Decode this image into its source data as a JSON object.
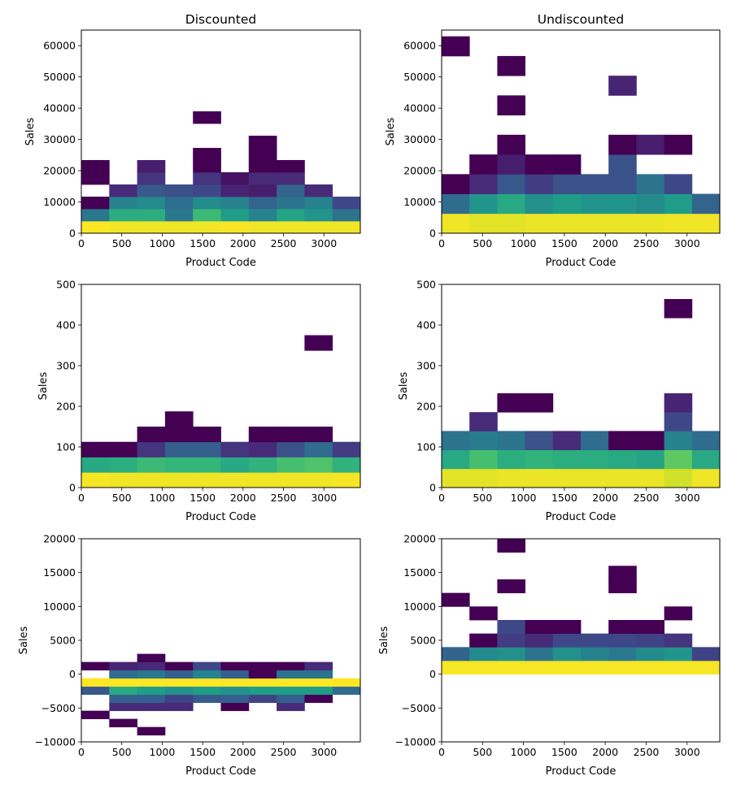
{
  "colormap": {
    "name": "viridis",
    "stops": [
      "#440154",
      "#482878",
      "#3e4989",
      "#31688e",
      "#26828e",
      "#1f9e89",
      "#35b779",
      "#6ece58",
      "#b5de2b",
      "#fde725"
    ]
  },
  "chart_data": [
    {
      "type": "heatmap",
      "title": "Discounted",
      "xlabel": "Product Code",
      "ylabel": "Sales",
      "xlim": [
        0,
        3450
      ],
      "ylim": [
        0,
        65000
      ],
      "xticks": [
        0,
        500,
        1000,
        1500,
        2000,
        2500,
        3000
      ],
      "yticks": [
        0,
        10000,
        20000,
        30000,
        40000,
        50000,
        60000
      ],
      "x_edges": [
        0,
        345,
        690,
        1035,
        1380,
        1725,
        2070,
        2415,
        2760,
        3105,
        3450
      ],
      "y_edges": [
        0,
        3900,
        7800,
        11700,
        15600,
        19500,
        23400,
        27300,
        31200,
        35100,
        39000
      ],
      "counts": [
        [
          1.0,
          0.98,
          0.98,
          0.98,
          0.98,
          0.99,
          0.98,
          0.98,
          0.98,
          0.98
        ],
        [
          0.4,
          0.62,
          0.62,
          0.4,
          0.68,
          0.55,
          0.45,
          0.58,
          0.52,
          0.38
        ],
        [
          0.0,
          0.45,
          0.48,
          0.36,
          0.48,
          0.45,
          0.32,
          0.38,
          0.45,
          0.22
        ],
        [
          null,
          0.12,
          0.28,
          0.25,
          0.22,
          0.1,
          0.08,
          0.32,
          0.12,
          null
        ],
        [
          0.0,
          null,
          0.15,
          null,
          0.15,
          0.05,
          0.12,
          0.12,
          null,
          null
        ],
        [
          0.0,
          null,
          0.08,
          null,
          0.0,
          null,
          0.0,
          0.0,
          null,
          null
        ],
        [
          null,
          null,
          null,
          null,
          0.0,
          null,
          0.0,
          null,
          null,
          null
        ],
        [
          null,
          null,
          null,
          null,
          null,
          null,
          0.0,
          null,
          null,
          null
        ],
        [
          null,
          null,
          null,
          null,
          null,
          null,
          null,
          null,
          null,
          null
        ],
        [
          null,
          null,
          null,
          null,
          0.0,
          null,
          null,
          null,
          null,
          null
        ]
      ]
    },
    {
      "type": "heatmap",
      "title": "Undiscounted",
      "xlabel": "Product Code",
      "ylabel": "Sales",
      "xlim": [
        0,
        3400
      ],
      "ylim": [
        0,
        65000
      ],
      "xticks": [
        0,
        500,
        1000,
        1500,
        2000,
        2500,
        3000
      ],
      "yticks": [
        0,
        10000,
        20000,
        30000,
        40000,
        50000,
        60000
      ],
      "x_edges": [
        0,
        340,
        680,
        1020,
        1360,
        1700,
        2040,
        2380,
        2720,
        3060,
        3400
      ],
      "y_edges": [
        0,
        6300,
        12600,
        18900,
        25200,
        31500,
        37800,
        44100,
        50400,
        56700,
        63000
      ],
      "counts": [
        [
          0.98,
          0.96,
          0.96,
          0.97,
          0.97,
          0.97,
          0.97,
          0.97,
          0.98,
          0.98
        ],
        [
          0.35,
          0.52,
          0.6,
          0.5,
          0.55,
          0.52,
          0.52,
          0.48,
          0.55,
          0.32
        ],
        [
          0.0,
          0.12,
          0.28,
          0.18,
          0.25,
          0.25,
          0.25,
          0.38,
          0.22,
          null
        ],
        [
          null,
          0.0,
          0.08,
          0.0,
          0.0,
          null,
          0.25,
          null,
          null,
          null
        ],
        [
          null,
          null,
          0.0,
          null,
          null,
          null,
          0.0,
          0.08,
          0.0,
          null
        ],
        [
          null,
          null,
          null,
          null,
          null,
          null,
          null,
          null,
          null,
          null
        ],
        [
          null,
          null,
          0.0,
          null,
          null,
          null,
          null,
          null,
          null,
          null
        ],
        [
          null,
          null,
          null,
          null,
          null,
          null,
          0.1,
          null,
          null,
          null
        ],
        [
          null,
          null,
          0.0,
          null,
          null,
          null,
          null,
          null,
          null,
          null
        ],
        [
          0.0,
          null,
          null,
          null,
          null,
          null,
          null,
          null,
          null,
          null
        ]
      ]
    },
    {
      "type": "heatmap",
      "title": "",
      "xlabel": "Product Code",
      "ylabel": "Sales",
      "xlim": [
        0,
        3450
      ],
      "ylim": [
        0,
        500
      ],
      "xticks": [
        0,
        500,
        1000,
        1500,
        2000,
        2500,
        3000
      ],
      "yticks": [
        0,
        100,
        200,
        300,
        400,
        500
      ],
      "x_edges": [
        0,
        345,
        690,
        1035,
        1380,
        1725,
        2070,
        2415,
        2760,
        3105,
        3450
      ],
      "y_edges": [
        0,
        37.5,
        75,
        112.5,
        150,
        187.5,
        225,
        262.5,
        300,
        337.5,
        375
      ],
      "counts": [
        [
          0.99,
          0.98,
          0.98,
          0.98,
          0.98,
          0.98,
          0.98,
          0.98,
          0.98,
          0.99
        ],
        [
          0.6,
          0.62,
          0.68,
          0.66,
          0.66,
          0.6,
          0.64,
          0.7,
          0.72,
          0.64
        ],
        [
          0.0,
          0.0,
          0.15,
          0.3,
          0.3,
          0.15,
          0.12,
          0.25,
          0.35,
          0.18
        ],
        [
          null,
          null,
          0.0,
          0.0,
          0.0,
          null,
          0.0,
          0.0,
          0.0,
          null
        ],
        [
          null,
          null,
          null,
          0.0,
          null,
          null,
          null,
          null,
          null,
          null
        ],
        [
          null,
          null,
          null,
          null,
          null,
          null,
          null,
          null,
          null,
          null
        ],
        [
          null,
          null,
          null,
          null,
          null,
          null,
          null,
          null,
          null,
          null
        ],
        [
          null,
          null,
          null,
          null,
          null,
          null,
          null,
          null,
          null,
          null
        ],
        [
          null,
          null,
          null,
          null,
          null,
          null,
          null,
          null,
          null,
          null
        ],
        [
          null,
          null,
          null,
          null,
          null,
          null,
          null,
          null,
          0.0,
          null
        ]
      ]
    },
    {
      "type": "heatmap",
      "title": "",
      "xlabel": "Product Code",
      "ylabel": "Sales",
      "xlim": [
        0,
        3400
      ],
      "ylim": [
        0,
        500
      ],
      "xticks": [
        0,
        500,
        1000,
        1500,
        2000,
        2500,
        3000
      ],
      "yticks": [
        0,
        100,
        200,
        300,
        400,
        500
      ],
      "x_edges": [
        0,
        340,
        680,
        1020,
        1360,
        1700,
        2040,
        2380,
        2720,
        3060,
        3400
      ],
      "y_edges": [
        0,
        46.4,
        92.8,
        139.2,
        185.6,
        232,
        278.4,
        324.8,
        371.2,
        417.6,
        464
      ],
      "counts": [
        [
          0.96,
          0.96,
          0.97,
          0.97,
          0.97,
          0.97,
          0.97,
          0.97,
          0.93,
          0.98
        ],
        [
          0.6,
          0.7,
          0.62,
          0.65,
          0.62,
          0.62,
          0.6,
          0.58,
          0.75,
          0.6
        ],
        [
          0.38,
          0.42,
          0.38,
          0.25,
          0.12,
          0.35,
          0.0,
          0.0,
          0.45,
          0.35
        ],
        [
          null,
          0.12,
          null,
          null,
          null,
          null,
          null,
          null,
          0.22,
          null
        ],
        [
          null,
          null,
          0.0,
          0.0,
          null,
          null,
          null,
          null,
          0.1,
          null
        ],
        [
          null,
          null,
          null,
          null,
          null,
          null,
          null,
          null,
          null,
          null
        ],
        [
          null,
          null,
          null,
          null,
          null,
          null,
          null,
          null,
          null,
          null
        ],
        [
          null,
          null,
          null,
          null,
          null,
          null,
          null,
          null,
          null,
          null
        ],
        [
          null,
          null,
          null,
          null,
          null,
          null,
          null,
          null,
          null,
          null
        ],
        [
          null,
          null,
          null,
          null,
          null,
          null,
          null,
          null,
          0.0,
          null
        ]
      ]
    },
    {
      "type": "heatmap",
      "title": "",
      "xlabel": "Product Code",
      "ylabel": "Sales",
      "xlim": [
        0,
        3450
      ],
      "ylim": [
        -10000,
        20000
      ],
      "xticks": [
        0,
        500,
        1000,
        1500,
        2000,
        2500,
        3000
      ],
      "yticks": [
        -10000,
        -5000,
        0,
        5000,
        10000,
        15000,
        20000
      ],
      "x_edges": [
        0,
        345,
        690,
        1035,
        1380,
        1725,
        2070,
        2415,
        2760,
        3105,
        3450
      ],
      "y_edges": [
        -9000,
        -7800,
        -6600,
        -5400,
        -4200,
        -3000,
        -1800,
        -600,
        600,
        1800,
        3000,
        4200,
        5400
      ],
      "counts": [
        [
          null,
          null,
          0.0,
          null,
          null,
          null,
          null,
          null,
          null,
          null
        ],
        [
          null,
          0.0,
          null,
          null,
          null,
          null,
          null,
          null,
          null,
          null
        ],
        [
          0.0,
          null,
          null,
          null,
          null,
          null,
          null,
          null,
          null,
          null
        ],
        [
          null,
          0.12,
          0.12,
          0.12,
          null,
          0.0,
          null,
          0.12,
          null,
          null
        ],
        [
          null,
          0.3,
          0.3,
          0.2,
          0.28,
          0.3,
          0.2,
          0.3,
          0.0,
          null
        ],
        [
          0.28,
          0.6,
          0.55,
          0.5,
          0.55,
          0.5,
          0.55,
          0.55,
          0.55,
          0.35
        ],
        [
          1.0,
          1.0,
          1.0,
          1.0,
          1.0,
          1.0,
          1.0,
          1.0,
          1.0,
          1.0
        ],
        [
          null,
          0.35,
          0.4,
          0.3,
          0.45,
          0.3,
          0.0,
          0.38,
          0.38,
          null
        ],
        [
          0.0,
          0.1,
          0.12,
          0.0,
          0.22,
          0.0,
          0.0,
          0.0,
          0.12,
          null
        ],
        [
          null,
          null,
          0.0,
          null,
          null,
          null,
          null,
          null,
          null,
          null
        ],
        [
          null,
          null,
          null,
          null,
          null,
          null,
          null,
          null,
          null,
          null
        ],
        [
          null,
          null,
          null,
          null,
          null,
          null,
          null,
          null,
          null,
          null
        ]
      ]
    },
    {
      "type": "heatmap",
      "title": "",
      "xlabel": "Product Code",
      "ylabel": "Sales",
      "xlim": [
        0,
        3400
      ],
      "ylim": [
        -10000,
        20000
      ],
      "xticks": [
        0,
        500,
        1000,
        1500,
        2000,
        2500,
        3000
      ],
      "yticks": [
        -10000,
        -5000,
        0,
        5000,
        10000,
        15000,
        20000
      ],
      "x_edges": [
        0,
        340,
        680,
        1020,
        1360,
        1700,
        2040,
        2380,
        2720,
        3060,
        3400
      ],
      "y_edges": [
        0,
        2000,
        4000,
        6000,
        8000,
        10000,
        12000,
        14000,
        16000,
        18000,
        20000
      ],
      "counts": [
        [
          0.99,
          0.99,
          0.99,
          0.99,
          0.99,
          0.99,
          0.99,
          0.99,
          0.99,
          0.99
        ],
        [
          0.32,
          0.48,
          0.5,
          0.38,
          0.5,
          0.45,
          0.4,
          0.48,
          0.52,
          0.2
        ],
        [
          null,
          0.0,
          0.18,
          0.12,
          0.22,
          0.22,
          0.22,
          0.2,
          0.15,
          null
        ],
        [
          null,
          null,
          0.22,
          0.0,
          0.0,
          null,
          0.0,
          0.0,
          null,
          null
        ],
        [
          null,
          0.0,
          null,
          null,
          null,
          null,
          null,
          null,
          0.0,
          null
        ],
        [
          0.0,
          null,
          null,
          null,
          null,
          null,
          null,
          null,
          null,
          null
        ],
        [
          null,
          null,
          0.0,
          null,
          null,
          null,
          0.0,
          null,
          null,
          null
        ],
        [
          null,
          null,
          null,
          null,
          null,
          null,
          0.0,
          null,
          null,
          null
        ],
        [
          null,
          null,
          null,
          null,
          null,
          null,
          null,
          null,
          null,
          null
        ],
        [
          null,
          null,
          0.0,
          null,
          null,
          null,
          null,
          null,
          null,
          null
        ]
      ]
    }
  ]
}
